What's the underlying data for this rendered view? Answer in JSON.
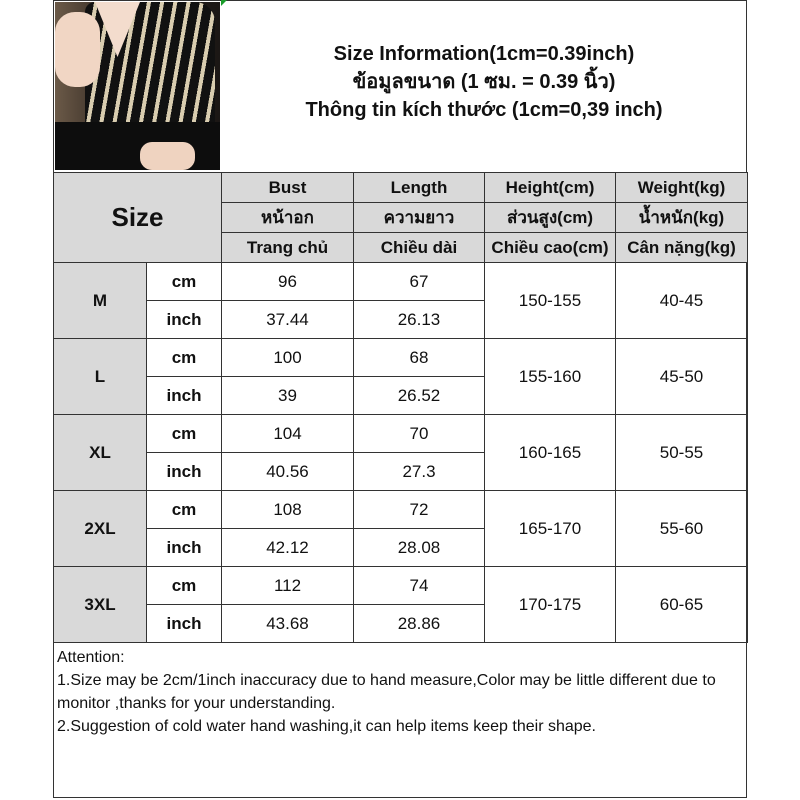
{
  "title_lines": [
    "Size Information(1cm=0.39inch)",
    "ข้อมูลขนาด (1 ซม. = 0.39 นิ้ว)",
    "Thông tin kích thước (1cm=0,39 inch)"
  ],
  "size_label": "Size",
  "headers": [
    [
      "Bust",
      "Length",
      "Height(cm)",
      "Weight(kg)"
    ],
    [
      "หน้าอก",
      "ความยาว",
      "ส่วนสูง(cm)",
      "น้ำหนัก(kg)"
    ],
    [
      "Trang chủ",
      "Chiều dài",
      "Chiều cao(cm)",
      "Cân nặng(kg)"
    ]
  ],
  "unit_cm": "cm",
  "unit_inch": "inch",
  "rows": [
    {
      "size": "M",
      "cm": [
        "96",
        "67"
      ],
      "inch": [
        "37.44",
        "26.13"
      ],
      "height": "150-155",
      "weight": "40-45"
    },
    {
      "size": "L",
      "cm": [
        "100",
        "68"
      ],
      "inch": [
        "39",
        "26.52"
      ],
      "height": "155-160",
      "weight": "45-50"
    },
    {
      "size": "XL",
      "cm": [
        "104",
        "70"
      ],
      "inch": [
        "40.56",
        "27.3"
      ],
      "height": "160-165",
      "weight": "50-55"
    },
    {
      "size": "2XL",
      "cm": [
        "108",
        "72"
      ],
      "inch": [
        "42.12",
        "28.08"
      ],
      "height": "165-170",
      "weight": "55-60"
    },
    {
      "size": "3XL",
      "cm": [
        "112",
        "74"
      ],
      "inch": [
        "43.68",
        "28.86"
      ],
      "height": "170-175",
      "weight": "60-65"
    }
  ],
  "attention": [
    "Attention:",
    "1.Size may be 2cm/1inch inaccuracy due to hand measure,Color may be little different due to monitor ,thanks for your understanding.",
    "2.Suggestion of cold water hand washing,it can help items keep their shape."
  ]
}
